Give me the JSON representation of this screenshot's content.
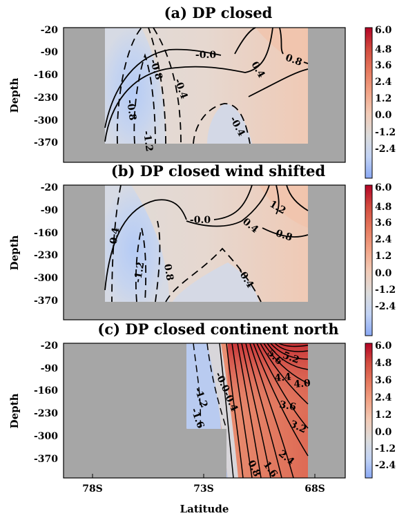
{
  "chart_data": [
    {
      "type": "contour",
      "title": "(a) DP closed",
      "ylabel": "Depth",
      "yticks": [
        "-20",
        "-90",
        "-160",
        "-230",
        "-300",
        "-370"
      ],
      "colorbar_ticks": [
        "6.0",
        "4.8",
        "3.6",
        "2.4",
        "1.2",
        "0.0",
        "-1.2",
        "-2.4"
      ],
      "clim": [
        -2.4,
        6.0
      ],
      "contour_labels": [
        "-0.0",
        "0.4",
        "0.8",
        "-0.8",
        "-0.4",
        "-0.8",
        "-1.2",
        "-0.4"
      ],
      "land_mask": "west of ~76.2S and east of ~68.2S; ocean floor below ~-385"
    },
    {
      "type": "contour",
      "title": "(b) DP closed wind shifted",
      "ylabel": "Depth",
      "yticks": [
        "-20",
        "-90",
        "-160",
        "-230",
        "-300",
        "-370"
      ],
      "colorbar_ticks": [
        "6.0",
        "4.8",
        "3.6",
        "2.4",
        "1.2",
        "0.0",
        "-1.2",
        "-2.4"
      ],
      "clim": [
        -2.4,
        6.0
      ],
      "contour_labels": [
        "1.2",
        "-0.0",
        "0.4",
        "0.8",
        "-0.4",
        "-1.2",
        "0.8",
        "-0.4"
      ],
      "land_mask": "west of ~76.2S and east of ~68.2S; ocean floor below ~-385"
    },
    {
      "type": "contour",
      "title": "(c) DP closed continent north",
      "ylabel": "Depth",
      "xlabel": "Latitude",
      "xticks": [
        "78S",
        "73S",
        "68S"
      ],
      "yticks": [
        "-20",
        "-90",
        "-160",
        "-230",
        "-300",
        "-370"
      ],
      "colorbar_ticks": [
        "6.0",
        "4.8",
        "3.6",
        "2.4",
        "1.2",
        "0.0",
        "-1.2",
        "-2.4"
      ],
      "clim": [
        -2.4,
        6.0
      ],
      "contour_labels": [
        "5.6",
        "5.2",
        "-0.0",
        "-0.4",
        "-1.2",
        "-1.6",
        "4.4",
        "4.0",
        "3.6",
        "3.2",
        "0.8",
        "1.6",
        "2.4"
      ],
      "land_mask": "west of ~73.6S and east of ~68.2S; step below -270 west of ~72.9S"
    }
  ],
  "colors": {
    "land": "#a6a6a6",
    "neg_strong": "#7f9ff2",
    "neutral": "#dddcdc",
    "pos_strong": "#b40426"
  }
}
